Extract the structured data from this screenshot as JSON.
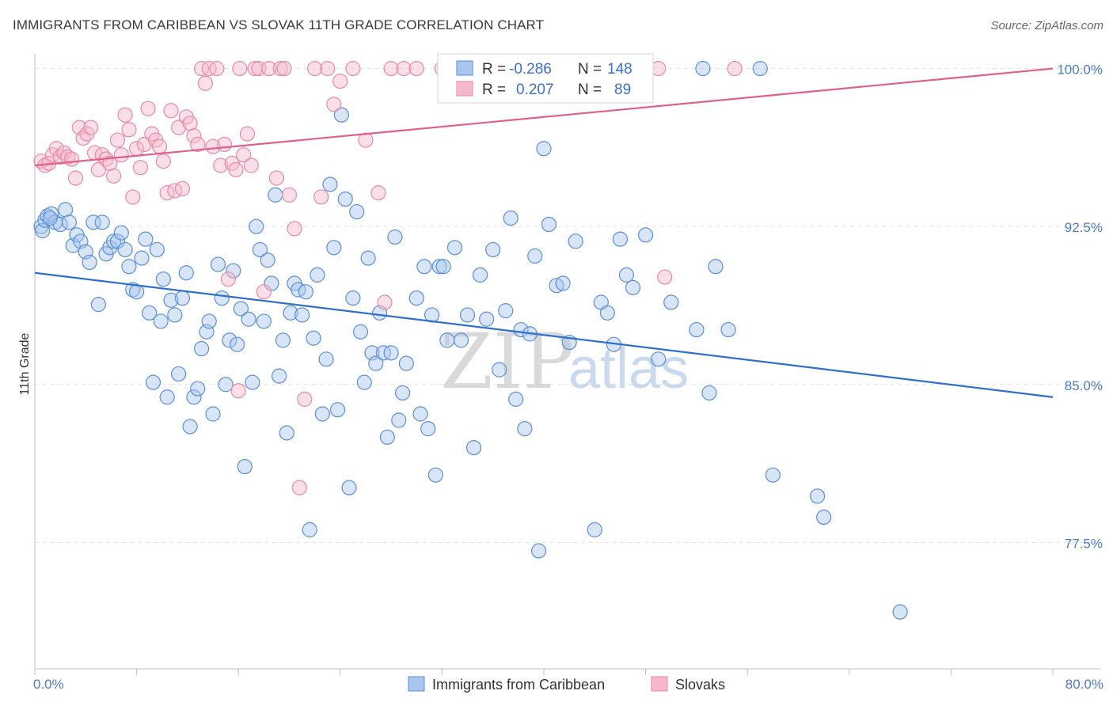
{
  "header": {
    "title": "IMMIGRANTS FROM CARIBBEAN VS SLOVAK 11TH GRADE CORRELATION CHART",
    "source": "Source: ZipAtlas.com"
  },
  "watermark": {
    "zip": "ZIP",
    "atlas": "atlas"
  },
  "colors": {
    "blue_fill": "#a9c6ee",
    "blue_stroke": "#5a8fd6",
    "blue_line": "#2f6fcf",
    "pink_fill": "#f6b9cb",
    "pink_stroke": "#e58aa7",
    "pink_line": "#e0608a",
    "tick_text": "#4a7cc9",
    "grid": "#e2e2e2"
  },
  "legend": {
    "rows": [
      {
        "r_label": "R =",
        "r_value": "-0.286",
        "n_label": "N =",
        "n_value": "148"
      },
      {
        "r_label": "R =",
        "r_value": "0.207",
        "n_label": "N =",
        "n_value": "89"
      }
    ]
  },
  "chart_data": {
    "type": "scatter",
    "title": "IMMIGRANTS FROM CARIBBEAN VS SLOVAK 11TH GRADE CORRELATION CHART",
    "xlabel": "",
    "ylabel": "11th Grade",
    "xlim": [
      0,
      80
    ],
    "ylim": [
      71.5,
      101
    ],
    "x_tick_labels": [
      "0.0%",
      "80.0%"
    ],
    "y_ticks": [
      77.5,
      85.0,
      92.5,
      100.0
    ],
    "y_tick_labels": [
      "77.5%",
      "85.0%",
      "92.5%",
      "100.0%"
    ],
    "grid": true,
    "legend_position": "bottom",
    "series": [
      {
        "name": "Immigrants from Caribbean",
        "color": "#a9c6ee",
        "trend": {
          "x": [
            0,
            80
          ],
          "y": [
            90.3,
            84.4
          ]
        },
        "points": [
          [
            0.5,
            92.5
          ],
          [
            0.6,
            92.3
          ],
          [
            0.8,
            92.8
          ],
          [
            1.0,
            93.0
          ],
          [
            1.3,
            93.1
          ],
          [
            1.6,
            92.7
          ],
          [
            2.0,
            92.6
          ],
          [
            2.4,
            93.3
          ],
          [
            2.7,
            92.7
          ],
          [
            3.0,
            91.6
          ],
          [
            3.3,
            92.1
          ],
          [
            3.6,
            91.8
          ],
          [
            4.0,
            91.3
          ],
          [
            4.3,
            90.8
          ],
          [
            4.6,
            92.7
          ],
          [
            5.0,
            88.8
          ],
          [
            5.3,
            92.7
          ],
          [
            5.6,
            91.2
          ],
          [
            5.9,
            91.5
          ],
          [
            6.2,
            91.8
          ],
          [
            6.5,
            91.8
          ],
          [
            6.8,
            92.2
          ],
          [
            7.1,
            91.4
          ],
          [
            7.4,
            90.6
          ],
          [
            7.7,
            89.5
          ],
          [
            8.0,
            89.4
          ],
          [
            8.4,
            91.0
          ],
          [
            8.7,
            91.9
          ],
          [
            9.0,
            88.4
          ],
          [
            9.3,
            85.1
          ],
          [
            9.6,
            91.4
          ],
          [
            9.9,
            88.0
          ],
          [
            10.1,
            90.0
          ],
          [
            10.4,
            84.4
          ],
          [
            10.7,
            89.0
          ],
          [
            11.0,
            88.3
          ],
          [
            11.3,
            85.5
          ],
          [
            11.6,
            89.1
          ],
          [
            11.9,
            90.3
          ],
          [
            12.2,
            83.0
          ],
          [
            12.5,
            84.4
          ],
          [
            12.8,
            84.8
          ],
          [
            13.1,
            86.7
          ],
          [
            13.5,
            87.5
          ],
          [
            13.7,
            88.0
          ],
          [
            14.0,
            83.6
          ],
          [
            14.4,
            90.7
          ],
          [
            14.7,
            89.1
          ],
          [
            15.0,
            85.0
          ],
          [
            15.3,
            87.1
          ],
          [
            15.6,
            90.4
          ],
          [
            15.9,
            86.9
          ],
          [
            16.2,
            88.6
          ],
          [
            16.5,
            81.1
          ],
          [
            16.8,
            88.1
          ],
          [
            17.1,
            85.1
          ],
          [
            17.4,
            92.5
          ],
          [
            17.7,
            91.4
          ],
          [
            18.0,
            88.0
          ],
          [
            18.3,
            90.9
          ],
          [
            18.6,
            89.8
          ],
          [
            18.9,
            94.0
          ],
          [
            19.2,
            85.4
          ],
          [
            19.5,
            87.1
          ],
          [
            19.8,
            82.7
          ],
          [
            20.1,
            88.4
          ],
          [
            20.4,
            89.8
          ],
          [
            20.7,
            89.5
          ],
          [
            21.0,
            88.3
          ],
          [
            21.3,
            89.4
          ],
          [
            21.6,
            78.1
          ],
          [
            21.9,
            87.2
          ],
          [
            22.2,
            90.2
          ],
          [
            22.6,
            83.6
          ],
          [
            22.9,
            86.2
          ],
          [
            23.2,
            94.5
          ],
          [
            23.5,
            91.5
          ],
          [
            23.8,
            83.8
          ],
          [
            24.1,
            97.8
          ],
          [
            24.4,
            93.8
          ],
          [
            24.7,
            80.1
          ],
          [
            25.0,
            89.1
          ],
          [
            25.3,
            93.2
          ],
          [
            25.6,
            87.5
          ],
          [
            25.9,
            85.1
          ],
          [
            26.2,
            91.0
          ],
          [
            26.5,
            86.5
          ],
          [
            26.8,
            86.0
          ],
          [
            27.1,
            88.4
          ],
          [
            27.4,
            86.5
          ],
          [
            27.7,
            82.5
          ],
          [
            28.0,
            86.5
          ],
          [
            28.3,
            92.0
          ],
          [
            28.6,
            83.3
          ],
          [
            28.9,
            84.6
          ],
          [
            29.2,
            86.0
          ],
          [
            30.0,
            89.1
          ],
          [
            30.3,
            83.6
          ],
          [
            30.6,
            90.6
          ],
          [
            30.9,
            82.9
          ],
          [
            31.2,
            88.3
          ],
          [
            31.5,
            80.7
          ],
          [
            31.8,
            90.6
          ],
          [
            32.1,
            90.6
          ],
          [
            32.4,
            87.1
          ],
          [
            33.0,
            91.5
          ],
          [
            33.5,
            87.1
          ],
          [
            34.0,
            88.3
          ],
          [
            34.5,
            82.0
          ],
          [
            35.0,
            90.2
          ],
          [
            35.5,
            88.1
          ],
          [
            36.0,
            91.4
          ],
          [
            36.5,
            85.7
          ],
          [
            37.0,
            88.5
          ],
          [
            37.4,
            92.9
          ],
          [
            37.8,
            84.3
          ],
          [
            38.2,
            87.6
          ],
          [
            38.5,
            82.9
          ],
          [
            38.9,
            87.4
          ],
          [
            39.3,
            91.1
          ],
          [
            39.6,
            77.1
          ],
          [
            40.0,
            96.2
          ],
          [
            40.4,
            92.6
          ],
          [
            41.0,
            89.7
          ],
          [
            41.5,
            89.8
          ],
          [
            42.0,
            87.0
          ],
          [
            42.5,
            91.8
          ],
          [
            44.0,
            78.1
          ],
          [
            44.5,
            88.9
          ],
          [
            45.0,
            88.4
          ],
          [
            45.5,
            86.9
          ],
          [
            46.0,
            91.9
          ],
          [
            46.5,
            90.2
          ],
          [
            47.0,
            89.6
          ],
          [
            48.0,
            92.1
          ],
          [
            49.0,
            86.2
          ],
          [
            50.0,
            88.9
          ],
          [
            52.0,
            87.6
          ],
          [
            53.0,
            84.6
          ],
          [
            53.5,
            90.6
          ],
          [
            54.5,
            87.6
          ],
          [
            58.0,
            80.7
          ],
          [
            61.5,
            79.7
          ],
          [
            62.0,
            78.7
          ],
          [
            68.0,
            74.2
          ],
          [
            52.5,
            100.0
          ],
          [
            57.0,
            100.0
          ],
          [
            1.2,
            92.9
          ]
        ]
      },
      {
        "name": "Slovaks",
        "color": "#f6b9cb",
        "trend": {
          "x": [
            0,
            80
          ],
          "y": [
            95.4,
            100.0
          ]
        },
        "points": [
          [
            0.5,
            95.6
          ],
          [
            0.8,
            95.4
          ],
          [
            1.1,
            95.5
          ],
          [
            1.4,
            95.9
          ],
          [
            1.7,
            96.2
          ],
          [
            2.0,
            95.8
          ],
          [
            2.3,
            96.0
          ],
          [
            2.6,
            95.8
          ],
          [
            2.9,
            95.7
          ],
          [
            3.2,
            94.8
          ],
          [
            3.5,
            97.2
          ],
          [
            3.8,
            96.7
          ],
          [
            4.1,
            96.9
          ],
          [
            4.4,
            97.2
          ],
          [
            4.7,
            96.0
          ],
          [
            5.0,
            95.2
          ],
          [
            5.3,
            95.9
          ],
          [
            5.6,
            95.7
          ],
          [
            5.9,
            95.5
          ],
          [
            6.2,
            94.9
          ],
          [
            6.5,
            96.6
          ],
          [
            6.8,
            95.9
          ],
          [
            7.1,
            97.8
          ],
          [
            7.4,
            97.1
          ],
          [
            7.7,
            93.9
          ],
          [
            8.0,
            96.2
          ],
          [
            8.3,
            95.3
          ],
          [
            8.6,
            96.4
          ],
          [
            8.9,
            98.1
          ],
          [
            9.2,
            96.9
          ],
          [
            9.5,
            96.6
          ],
          [
            9.8,
            96.3
          ],
          [
            10.1,
            95.6
          ],
          [
            10.4,
            94.1
          ],
          [
            10.7,
            98.0
          ],
          [
            11.0,
            94.2
          ],
          [
            11.3,
            97.2
          ],
          [
            11.6,
            94.3
          ],
          [
            11.9,
            97.7
          ],
          [
            12.2,
            97.4
          ],
          [
            12.5,
            96.8
          ],
          [
            12.8,
            96.4
          ],
          [
            13.1,
            100.0
          ],
          [
            13.4,
            99.3
          ],
          [
            13.7,
            100.0
          ],
          [
            14.0,
            96.3
          ],
          [
            14.3,
            100.0
          ],
          [
            14.6,
            95.4
          ],
          [
            14.9,
            96.4
          ],
          [
            15.2,
            90.0
          ],
          [
            15.5,
            95.5
          ],
          [
            15.8,
            95.2
          ],
          [
            16.1,
            100.0
          ],
          [
            16.4,
            95.9
          ],
          [
            16.7,
            96.9
          ],
          [
            17.0,
            95.4
          ],
          [
            17.3,
            100.0
          ],
          [
            17.6,
            100.0
          ],
          [
            18.0,
            89.4
          ],
          [
            18.4,
            100.0
          ],
          [
            19.0,
            94.8
          ],
          [
            19.3,
            100.0
          ],
          [
            19.6,
            100.0
          ],
          [
            20.0,
            94.0
          ],
          [
            20.4,
            92.4
          ],
          [
            20.8,
            80.1
          ],
          [
            21.2,
            84.3
          ],
          [
            22.0,
            100.0
          ],
          [
            22.5,
            93.9
          ],
          [
            23.0,
            100.0
          ],
          [
            23.5,
            98.3
          ],
          [
            24.0,
            99.4
          ],
          [
            25.0,
            100.0
          ],
          [
            26.0,
            96.6
          ],
          [
            27.0,
            94.1
          ],
          [
            27.5,
            88.9
          ],
          [
            28.0,
            100.0
          ],
          [
            29.0,
            100.0
          ],
          [
            30.0,
            100.0
          ],
          [
            32.0,
            100.0
          ],
          [
            34.0,
            100.0
          ],
          [
            36.0,
            100.0
          ],
          [
            38.0,
            100.0
          ],
          [
            42.0,
            100.0
          ],
          [
            47.0,
            100.0
          ],
          [
            49.0,
            100.0
          ],
          [
            49.5,
            90.1
          ],
          [
            55.0,
            100.0
          ],
          [
            16.0,
            84.7
          ]
        ]
      }
    ]
  },
  "axis": {
    "y_title": "11th Grade",
    "x_left_label": "0.0%",
    "x_right_label": "80.0%"
  }
}
